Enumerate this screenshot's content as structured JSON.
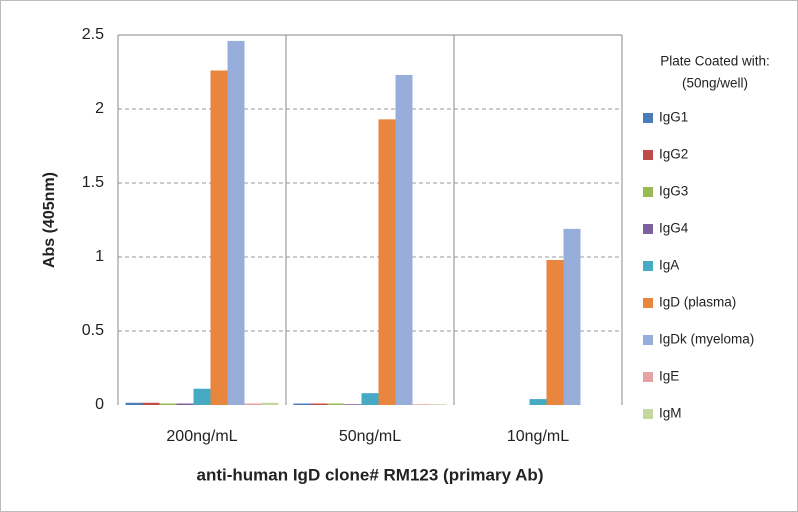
{
  "chart_data": {
    "type": "bar",
    "categories": [
      "200ng/mL",
      "50ng/mL",
      "10ng/mL"
    ],
    "series": [
      {
        "name": "IgG1",
        "color": "#4a7ebb",
        "values": [
          0.015,
          0.01,
          0
        ]
      },
      {
        "name": "IgG2",
        "color": "#be4b48",
        "values": [
          0.015,
          0.01,
          0
        ]
      },
      {
        "name": "IgG3",
        "color": "#98b954",
        "values": [
          0.01,
          0.01,
          0
        ]
      },
      {
        "name": "IgG4",
        "color": "#7d60a0",
        "values": [
          0.01,
          0.005,
          0
        ]
      },
      {
        "name": "IgA",
        "color": "#46aac5",
        "values": [
          0.11,
          0.08,
          0.04
        ]
      },
      {
        "name": "IgD (plasma)",
        "color": "#e8863e",
        "values": [
          2.26,
          1.93,
          0.98
        ]
      },
      {
        "name": "IgDk (myeloma)",
        "color": "#97aedb",
        "values": [
          2.46,
          2.23,
          1.19
        ]
      },
      {
        "name": "IgE",
        "color": "#e6a3a3",
        "values": [
          0.01,
          0.005,
          0
        ]
      },
      {
        "name": "IgM",
        "color": "#c3d89f",
        "values": [
          0.015,
          0.005,
          0
        ]
      }
    ],
    "legend_title": [
      "Plate Coated with:",
      "(50ng/well)"
    ],
    "ylabel": "Abs (405nm)",
    "xlabel": "anti-human IgD clone# RM123 (primary Ab)",
    "ylim": [
      0,
      2.5
    ],
    "yticks": [
      0,
      0.5,
      1,
      1.5,
      2,
      2.5
    ],
    "grid": true,
    "legend": "right"
  }
}
